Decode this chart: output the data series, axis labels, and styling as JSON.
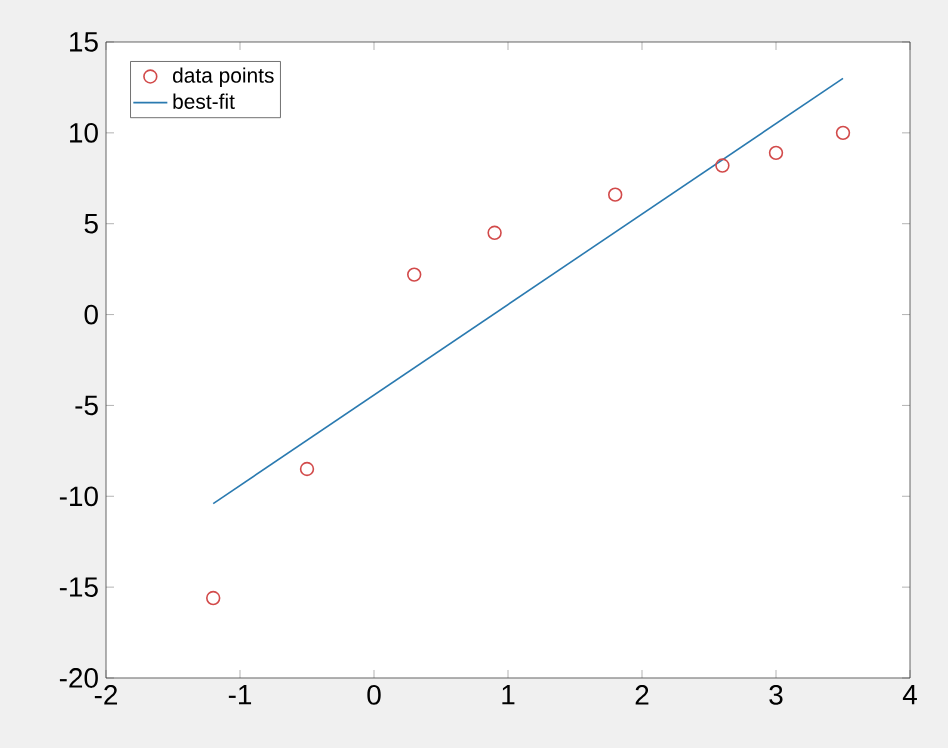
{
  "chart_data": {
    "type": "scatter",
    "xlim": [
      -2,
      4
    ],
    "xticks": [
      -2,
      -1,
      0,
      1,
      2,
      3,
      4
    ],
    "ylim": [
      -20,
      15
    ],
    "yticks": [
      -20,
      -15,
      -10,
      -5,
      0,
      5,
      10,
      15
    ],
    "grid": false,
    "legend": "top left",
    "series": [
      {
        "name": "data points",
        "type": "scatter",
        "marker": "circle",
        "color": "#d24a4a",
        "x": [
          -1.2,
          -0.5,
          0.3,
          0.9,
          1.8,
          2.6,
          3.0,
          3.5
        ],
        "values": [
          -15.6,
          -8.5,
          2.2,
          4.5,
          6.6,
          8.2,
          8.9,
          10.0
        ]
      },
      {
        "name": "best-fit",
        "type": "line",
        "marker": "none",
        "color": "#2a7ab0",
        "x": [
          -1.2,
          3.5
        ],
        "values": [
          -10.4,
          13.0
        ]
      }
    ]
  }
}
